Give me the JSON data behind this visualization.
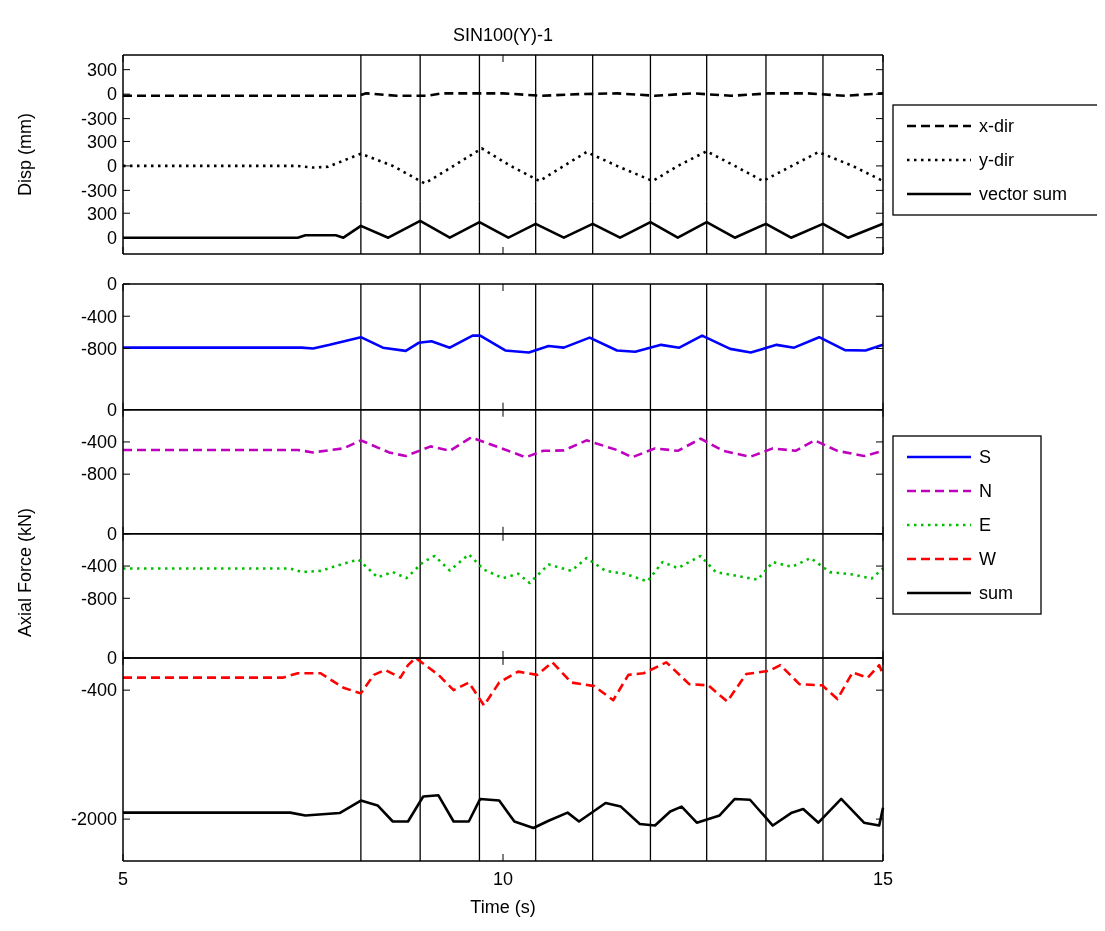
{
  "chart_data": [
    {
      "type": "line",
      "title": "SIN100(Y)-1",
      "xlim": [
        5,
        15
      ],
      "xticks": [
        5,
        10,
        15
      ],
      "ylim": [
        -440,
        480
      ],
      "yticks": [
        300,
        0,
        -300
      ],
      "tick_labels": "y",
      "legend": "right",
      "ref_lines": [
        {
          "axis": "x",
          "value": 8.13
        },
        {
          "axis": "x",
          "value": 8.91
        },
        {
          "axis": "x",
          "value": 9.69
        },
        {
          "axis": "x",
          "value": 10.43
        },
        {
          "axis": "x",
          "value": 11.18
        },
        {
          "axis": "x",
          "value": 11.94
        },
        {
          "axis": "x",
          "value": 12.68
        },
        {
          "axis": "x",
          "value": 13.46
        },
        {
          "axis": "x",
          "value": 14.21
        }
      ],
      "series": [
        {
          "name": "x-dir",
          "color": "#000000",
          "line_style": "dashed",
          "x": [
            5,
            8.1,
            8.2,
            8.6,
            9.0,
            9.2,
            10.0,
            10.5,
            11.0,
            11.5,
            12.0,
            12.5,
            13.0,
            13.5,
            14.0,
            14.5,
            15
          ],
          "values": [
            -20,
            -20,
            10,
            -20,
            -20,
            10,
            10,
            -20,
            0,
            10,
            -20,
            10,
            -20,
            10,
            10,
            -20,
            10
          ]
        }
      ]
    },
    {
      "type": "line",
      "ylabel": "Disp (mm)",
      "xlim": [
        5,
        15
      ],
      "xticks": [
        5,
        10,
        15
      ],
      "ylim": [
        -440,
        440
      ],
      "yticks": [
        300,
        0,
        -300
      ],
      "tick_labels": "y",
      "legend": "right",
      "ref_lines": [
        {
          "axis": "x",
          "value": 8.13
        },
        {
          "axis": "x",
          "value": 8.91
        },
        {
          "axis": "x",
          "value": 9.69
        },
        {
          "axis": "x",
          "value": 10.43
        },
        {
          "axis": "x",
          "value": 11.18
        },
        {
          "axis": "x",
          "value": 11.94
        },
        {
          "axis": "x",
          "value": 12.68
        },
        {
          "axis": "x",
          "value": 13.46
        },
        {
          "axis": "x",
          "value": 14.21
        }
      ],
      "series": [
        {
          "name": "y-dir",
          "color": "#000000",
          "line_style": "dotted",
          "x": [
            5,
            7.3,
            7.5,
            7.7,
            8.13,
            8.55,
            8.97,
            9.35,
            9.72,
            10.1,
            10.48,
            10.8,
            11.1,
            11.5,
            11.97,
            12.3,
            12.68,
            13.05,
            13.42,
            13.8,
            14.15,
            14.6,
            15
          ],
          "values": [
            0,
            0,
            -20,
            -10,
            150,
            0,
            -215,
            0,
            215,
            0,
            -185,
            0,
            170,
            0,
            -185,
            0,
            180,
            0,
            -185,
            0,
            170,
            0,
            -185
          ]
        }
      ]
    },
    {
      "type": "line",
      "xlim": [
        5,
        15
      ],
      "xticks": [
        5,
        10,
        15
      ],
      "ylim": [
        -200,
        440
      ],
      "yticks": [
        300,
        0
      ],
      "tick_labels": "y",
      "legend": "right",
      "ref_lines": [
        {
          "axis": "x",
          "value": 8.13
        },
        {
          "axis": "x",
          "value": 8.91
        },
        {
          "axis": "x",
          "value": 9.69
        },
        {
          "axis": "x",
          "value": 10.43
        },
        {
          "axis": "x",
          "value": 11.18
        },
        {
          "axis": "x",
          "value": 11.94
        },
        {
          "axis": "x",
          "value": 12.68
        },
        {
          "axis": "x",
          "value": 13.46
        },
        {
          "axis": "x",
          "value": 14.21
        }
      ],
      "series": [
        {
          "name": "vector sum",
          "color": "#000000",
          "line_style": "solid",
          "x": [
            5,
            7.3,
            7.4,
            7.8,
            7.9,
            8.13,
            8.49,
            8.91,
            9.3,
            9.69,
            10.07,
            10.43,
            10.8,
            11.18,
            11.54,
            11.94,
            12.3,
            12.68,
            13.05,
            13.46,
            13.79,
            14.21,
            14.54,
            15
          ],
          "values": [
            0,
            0,
            30,
            30,
            0,
            145,
            0,
            205,
            0,
            190,
            0,
            170,
            0,
            170,
            0,
            190,
            0,
            190,
            0,
            170,
            0,
            170,
            0,
            170
          ]
        }
      ]
    },
    {
      "type": "line",
      "xlim": [
        5,
        15
      ],
      "xticks": [
        5,
        10,
        15
      ],
      "ylim": [
        -1560,
        0
      ],
      "yticks": [
        0,
        -400,
        -800
      ],
      "tick_labels": "y",
      "legend": "right",
      "ref_lines": [
        {
          "axis": "x",
          "value": 8.13
        },
        {
          "axis": "x",
          "value": 8.91
        },
        {
          "axis": "x",
          "value": 9.69
        },
        {
          "axis": "x",
          "value": 10.43
        },
        {
          "axis": "x",
          "value": 11.18
        },
        {
          "axis": "x",
          "value": 11.94
        },
        {
          "axis": "x",
          "value": 12.68
        },
        {
          "axis": "x",
          "value": 13.46
        },
        {
          "axis": "x",
          "value": 14.21
        }
      ],
      "series": [
        {
          "name": "S",
          "color": "#0000ff",
          "line_style": "solid",
          "x": [
            5,
            7.35,
            7.5,
            7.72,
            8.13,
            8.42,
            8.72,
            8.89,
            9.06,
            9.3,
            9.6,
            9.7,
            10.03,
            10.34,
            10.6,
            10.8,
            11.14,
            11.5,
            11.74,
            12.08,
            12.32,
            12.62,
            12.99,
            13.26,
            13.6,
            13.83,
            14.16,
            14.5,
            14.77,
            15
          ],
          "values": [
            -790,
            -790,
            -800,
            -755,
            -660,
            -790,
            -830,
            -730,
            -710,
            -790,
            -640,
            -640,
            -825,
            -850,
            -770,
            -790,
            -665,
            -825,
            -840,
            -755,
            -790,
            -640,
            -805,
            -850,
            -755,
            -790,
            -660,
            -820,
            -825,
            -755
          ]
        }
      ]
    },
    {
      "type": "line",
      "xlim": [
        5,
        15
      ],
      "xticks": [
        5,
        10,
        15
      ],
      "ylim": [
        -1540,
        0
      ],
      "yticks": [
        0,
        -400,
        -800
      ],
      "tick_labels": "y",
      "legend": "right",
      "ref_lines": [
        {
          "axis": "x",
          "value": 8.13
        },
        {
          "axis": "x",
          "value": 8.91
        },
        {
          "axis": "x",
          "value": 9.69
        },
        {
          "axis": "x",
          "value": 10.43
        },
        {
          "axis": "x",
          "value": 11.18
        },
        {
          "axis": "x",
          "value": 11.94
        },
        {
          "axis": "x",
          "value": 12.68
        },
        {
          "axis": "x",
          "value": 13.46
        },
        {
          "axis": "x",
          "value": 14.21
        }
      ],
      "series": [
        {
          "name": "N",
          "color": "#bf00bf",
          "line_style": "dashed",
          "x": [
            5,
            7.3,
            7.5,
            7.9,
            8.13,
            8.5,
            8.72,
            9.05,
            9.3,
            9.58,
            9.85,
            10.3,
            10.53,
            10.8,
            11.1,
            11.5,
            11.7,
            12.0,
            12.3,
            12.6,
            12.9,
            13.25,
            13.55,
            13.85,
            14.1,
            14.4,
            14.75,
            15
          ],
          "values": [
            -500,
            -500,
            -530,
            -480,
            -380,
            -530,
            -575,
            -455,
            -510,
            -345,
            -435,
            -590,
            -510,
            -505,
            -380,
            -500,
            -590,
            -480,
            -510,
            -360,
            -510,
            -585,
            -480,
            -510,
            -380,
            -510,
            -575,
            -510
          ]
        }
      ]
    },
    {
      "type": "line",
      "ylabel": "Axial Force (kN)",
      "xlim": [
        5,
        15
      ],
      "xticks": [
        5,
        10,
        15
      ],
      "ylim": [
        -1540,
        0
      ],
      "yticks": [
        0,
        -400,
        -800
      ],
      "tick_labels": "y",
      "legend": "right",
      "ref_lines": [
        {
          "axis": "x",
          "value": 8.13
        },
        {
          "axis": "x",
          "value": 8.91
        },
        {
          "axis": "x",
          "value": 9.69
        },
        {
          "axis": "x",
          "value": 10.43
        },
        {
          "axis": "x",
          "value": 11.18
        },
        {
          "axis": "x",
          "value": 11.94
        },
        {
          "axis": "x",
          "value": 12.68
        },
        {
          "axis": "x",
          "value": 13.46
        },
        {
          "axis": "x",
          "value": 14.21
        }
      ],
      "series": [
        {
          "name": "E",
          "color": "#00bf00",
          "line_style": "dotted",
          "x": [
            5,
            7.2,
            7.35,
            7.6,
            7.9,
            8.1,
            8.35,
            8.55,
            8.73,
            8.95,
            9.1,
            9.3,
            9.55,
            9.75,
            10.0,
            10.2,
            10.35,
            10.6,
            10.9,
            11.1,
            11.35,
            11.6,
            11.9,
            12.1,
            12.3,
            12.6,
            12.8,
            13.1,
            13.35,
            13.55,
            13.8,
            14.05,
            14.3,
            14.6,
            14.85,
            15
          ],
          "values": [
            -430,
            -430,
            -475,
            -460,
            -370,
            -320,
            -540,
            -475,
            -550,
            -350,
            -275,
            -455,
            -255,
            -445,
            -550,
            -495,
            -610,
            -380,
            -460,
            -300,
            -460,
            -495,
            -590,
            -350,
            -425,
            -275,
            -475,
            -525,
            -570,
            -350,
            -410,
            -300,
            -475,
            -505,
            -555,
            -430
          ]
        }
      ]
    },
    {
      "type": "line",
      "xlabel": "Time (s)",
      "xlim": [
        5,
        15
      ],
      "xticks": [
        5,
        10,
        15
      ],
      "ylim": [
        -2520,
        0
      ],
      "yticks": [
        0,
        -400,
        -2000
      ],
      "legend": "right",
      "ref_lines": [
        {
          "axis": "x",
          "value": 8.13
        },
        {
          "axis": "x",
          "value": 8.91
        },
        {
          "axis": "x",
          "value": 9.69
        },
        {
          "axis": "x",
          "value": 10.43
        },
        {
          "axis": "x",
          "value": 11.18
        },
        {
          "axis": "x",
          "value": 11.94
        },
        {
          "axis": "x",
          "value": 12.68
        },
        {
          "axis": "x",
          "value": 13.46
        },
        {
          "axis": "x",
          "value": 14.21
        }
      ],
      "series": [
        {
          "name": "W",
          "color": "#ff0000",
          "line_style": "dashed",
          "x": [
            5,
            7.1,
            7.3,
            7.6,
            7.9,
            8.13,
            8.3,
            8.45,
            8.65,
            8.75,
            8.85,
            9.15,
            9.35,
            9.55,
            9.75,
            9.95,
            10.2,
            10.45,
            10.65,
            10.9,
            11.2,
            11.45,
            11.65,
            11.85,
            12.15,
            12.45,
            12.7,
            12.95,
            13.2,
            13.5,
            13.65,
            13.9,
            14.2,
            14.4,
            14.6,
            14.8,
            14.95,
            15
          ],
          "values": [
            -245,
            -245,
            -190,
            -190,
            -370,
            -440,
            -210,
            -150,
            -245,
            -90,
            0,
            -210,
            -400,
            -305,
            -590,
            -305,
            -170,
            -210,
            -55,
            -305,
            -350,
            -525,
            -210,
            -190,
            -55,
            -325,
            -340,
            -540,
            -200,
            -160,
            -90,
            -325,
            -340,
            -510,
            -180,
            -245,
            -90,
            -200
          ]
        },
        {
          "name": "sum",
          "color": "#000000",
          "line_style": "solid",
          "x": [
            5,
            7.2,
            7.4,
            7.85,
            8.13,
            8.35,
            8.55,
            8.75,
            8.95,
            9.15,
            9.35,
            9.55,
            9.7,
            9.95,
            10.15,
            10.4,
            10.6,
            10.85,
            11.0,
            11.35,
            11.55,
            11.8,
            12.0,
            12.2,
            12.35,
            12.55,
            12.85,
            13.05,
            13.25,
            13.55,
            13.8,
            13.95,
            14.15,
            14.45,
            14.75,
            14.95,
            15
          ],
          "values": [
            -1920,
            -1920,
            -1955,
            -1925,
            -1770,
            -1830,
            -2030,
            -2030,
            -1720,
            -1705,
            -2030,
            -2030,
            -1750,
            -1770,
            -2030,
            -2110,
            -2020,
            -1920,
            -2030,
            -1800,
            -1845,
            -2060,
            -2080,
            -1905,
            -1845,
            -2045,
            -1955,
            -1750,
            -1760,
            -2080,
            -1920,
            -1875,
            -2045,
            -1750,
            -2045,
            -2080,
            -1860
          ]
        }
      ]
    }
  ]
}
